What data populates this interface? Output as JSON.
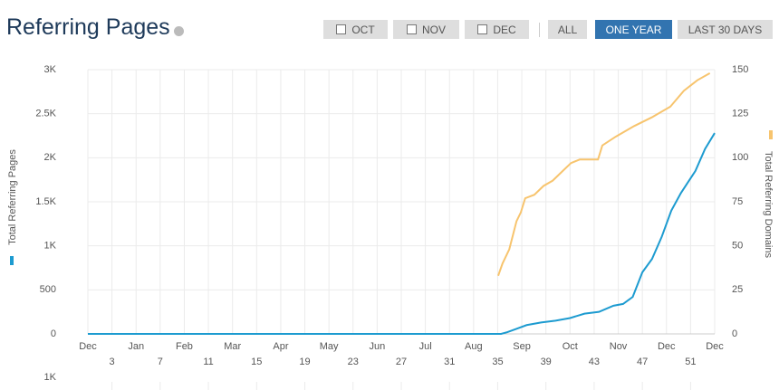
{
  "header": {
    "title": "Referring Pages",
    "buttons": [
      "OCT",
      "NOV",
      "DEC",
      "ALL",
      "ONE YEAR",
      "LAST 30 DAYS"
    ]
  },
  "chart_data": {
    "type": "line",
    "ylabel": "Total Referring Pages",
    "y2label": "Total Referring Domains",
    "xlim": [
      0,
      13
    ],
    "xticks": [
      {
        "value": 0,
        "label": "Dec"
      },
      {
        "value": 1,
        "label": "Jan"
      },
      {
        "value": 2,
        "label": "Feb"
      },
      {
        "value": 3,
        "label": "Mar"
      },
      {
        "value": 4,
        "label": "Apr"
      },
      {
        "value": 5,
        "label": "May"
      },
      {
        "value": 6,
        "label": "Jun"
      },
      {
        "value": 7,
        "label": "Jul"
      },
      {
        "value": 8,
        "label": "Aug"
      },
      {
        "value": 9,
        "label": "Sep"
      },
      {
        "value": 10,
        "label": "Oct"
      },
      {
        "value": 11,
        "label": "Nov"
      },
      {
        "value": 12,
        "label": "Dec"
      },
      {
        "value": 13,
        "label": "Dec"
      }
    ],
    "week_ticks": [
      {
        "value": 0.5,
        "label": "3"
      },
      {
        "value": 1.5,
        "label": "7"
      },
      {
        "value": 2.5,
        "label": "11"
      },
      {
        "value": 3.5,
        "label": "15"
      },
      {
        "value": 4.5,
        "label": "19"
      },
      {
        "value": 5.5,
        "label": "23"
      },
      {
        "value": 6.5,
        "label": "27"
      },
      {
        "value": 7.5,
        "label": "31"
      },
      {
        "value": 8.5,
        "label": "35"
      },
      {
        "value": 9.5,
        "label": "39"
      },
      {
        "value": 10.5,
        "label": "43"
      },
      {
        "value": 11.5,
        "label": "47"
      },
      {
        "value": 12.5,
        "label": "51"
      }
    ],
    "ylim": [
      0,
      3000
    ],
    "yticks": [
      0,
      500,
      {
        "value": 1000,
        "label": "1K"
      },
      {
        "value": 1500,
        "label": "1.5K"
      },
      {
        "value": 2000,
        "label": "2K"
      },
      {
        "value": 2500,
        "label": "2.5K"
      },
      {
        "value": 3000,
        "label": "3K"
      }
    ],
    "y2lim": [
      0,
      150
    ],
    "y2ticks": [
      0,
      25,
      50,
      75,
      100,
      125,
      150
    ],
    "grid": true,
    "series": [
      {
        "name": "Total Referring Pages",
        "color": "#1d9bd0",
        "x": [
          0,
          8.57,
          8.7,
          8.9,
          9.1,
          9.4,
          9.7,
          10.0,
          10.3,
          10.6,
          10.9,
          11.1,
          11.3,
          11.5,
          11.7,
          11.9,
          12.1,
          12.3,
          12.6,
          12.8,
          13.0
        ],
        "values": [
          0,
          0,
          20,
          60,
          100,
          130,
          150,
          180,
          230,
          250,
          320,
          340,
          420,
          700,
          850,
          1100,
          1400,
          1600,
          1850,
          2100,
          2280
        ]
      },
      {
        "name": "Total Referring Domains",
        "color": "#f7c46e",
        "axis": "y2",
        "x": [
          8.51,
          8.6,
          8.74,
          8.89,
          8.98,
          9.07,
          9.26,
          9.45,
          9.64,
          9.83,
          10.02,
          10.2,
          10.58,
          10.67,
          10.95,
          11.33,
          11.7,
          12.08,
          12.36,
          12.64,
          12.9
        ],
        "values": [
          33,
          40,
          48,
          64,
          69,
          77,
          79,
          84,
          87,
          92,
          97,
          99,
          99,
          107,
          112,
          118,
          123,
          129,
          138,
          144,
          148
        ]
      }
    ]
  },
  "next_chart": {
    "ytick_label": "1K"
  }
}
